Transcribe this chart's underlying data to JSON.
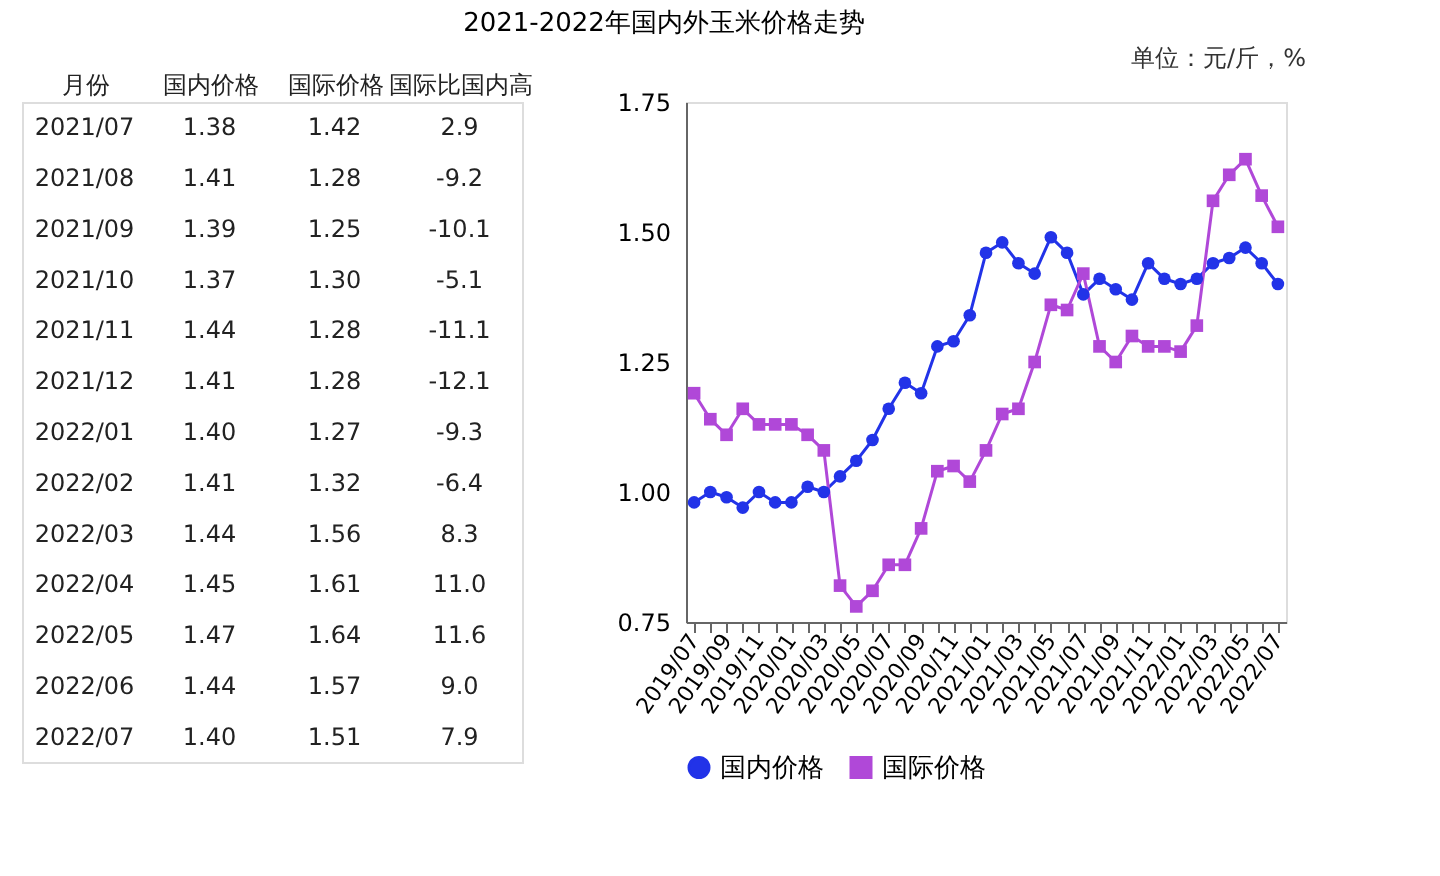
{
  "chart_data": [
    {
      "type": "other",
      "title": "2021-2022年国内外玉米价格走势",
      "xlabel": "月份",
      "data_labels": true,
      "categories": [
        "2021/07",
        "2021/08",
        "2021/09",
        "2021/10",
        "2021/11",
        "2021/12",
        "2022/01",
        "2022/02",
        "2022/03",
        "2022/04",
        "2022/05",
        "2022/06",
        "2022/07"
      ],
      "series": [
        {
          "name": "国内价格",
          "values": [
            1.38,
            1.41,
            1.39,
            1.37,
            1.44,
            1.41,
            1.4,
            1.41,
            1.44,
            1.45,
            1.47,
            1.44,
            1.4
          ],
          "value_labels": [
            "1.38",
            "1.41",
            "1.39",
            "1.37",
            "1.44",
            "1.41",
            "1.40",
            "1.41",
            "1.44",
            "1.45",
            "1.47",
            "1.44",
            "1.40"
          ]
        },
        {
          "name": "国际价格",
          "values": [
            1.42,
            1.28,
            1.25,
            1.3,
            1.28,
            1.28,
            1.27,
            1.32,
            1.56,
            1.61,
            1.64,
            1.57,
            1.51
          ],
          "value_labels": [
            "1.42",
            "1.28",
            "1.25",
            "1.30",
            "1.28",
            "1.28",
            "1.27",
            "1.32",
            "1.56",
            "1.61",
            "1.64",
            "1.57",
            "1.51"
          ]
        },
        {
          "name": "国际比国内高",
          "values": [
            2.9,
            -9.2,
            -10.1,
            -5.1,
            -11.1,
            -12.1,
            -9.3,
            -6.4,
            8.3,
            11.0,
            11.6,
            9.0,
            7.9
          ],
          "value_labels": [
            "2.9",
            "-9.2",
            "-10.1",
            "-5.1",
            "-11.1",
            "-12.1",
            "-9.3",
            "-6.4",
            "8.3",
            "11.0",
            "11.6",
            "9.0",
            "7.9"
          ]
        }
      ]
    },
    {
      "type": "line",
      "annotations": [
        "单位：元/斤，%"
      ],
      "legend": "bottom",
      "grid": false,
      "categories": [
        "2019/07",
        null,
        "2019/09",
        null,
        "2019/11",
        null,
        "2020/01",
        null,
        "2020/03",
        null,
        "2020/05",
        null,
        "2020/07",
        null,
        "2020/09",
        null,
        "2020/11",
        null,
        "2021/01",
        null,
        "2021/03",
        null,
        "2021/05",
        null,
        "2021/07",
        null,
        "2021/09",
        null,
        "2021/11",
        null,
        "2022/01",
        null,
        "2022/03",
        null,
        "2022/05",
        null,
        "2022/07"
      ],
      "ylim": [
        0.75,
        1.75
      ],
      "yticks": [
        {
          "value": 0.75,
          "label": "0.75"
        },
        {
          "value": 1.0,
          "label": "1.00"
        },
        {
          "value": 1.25,
          "label": "1.25"
        },
        {
          "value": 1.5,
          "label": "1.50"
        },
        {
          "value": 1.75,
          "label": "1.75"
        }
      ],
      "series": [
        {
          "name": "国内价格",
          "color": "#2233e8",
          "marker": "circle",
          "values": [
            0.98,
            1.0,
            0.99,
            0.97,
            1.0,
            0.98,
            0.98,
            1.01,
            1.0,
            1.03,
            1.06,
            1.1,
            1.16,
            1.21,
            1.19,
            1.28,
            1.29,
            1.34,
            1.46,
            1.48,
            1.44,
            1.42,
            1.49,
            1.46,
            1.38,
            1.41,
            1.39,
            1.37,
            1.44,
            1.41,
            1.4,
            1.41,
            1.44,
            1.45,
            1.47,
            1.44,
            1.4
          ]
        },
        {
          "name": "国际价格",
          "color": "#b048d8",
          "marker": "square",
          "values": [
            1.19,
            1.14,
            1.11,
            1.16,
            1.13,
            1.13,
            1.13,
            1.11,
            1.08,
            0.82,
            0.78,
            0.81,
            0.86,
            0.86,
            0.93,
            1.04,
            1.05,
            1.02,
            1.08,
            1.15,
            1.16,
            1.25,
            1.36,
            1.35,
            1.42,
            1.28,
            1.25,
            1.3,
            1.28,
            1.28,
            1.27,
            1.32,
            1.56,
            1.61,
            1.64,
            1.57,
            1.51
          ]
        }
      ]
    }
  ]
}
